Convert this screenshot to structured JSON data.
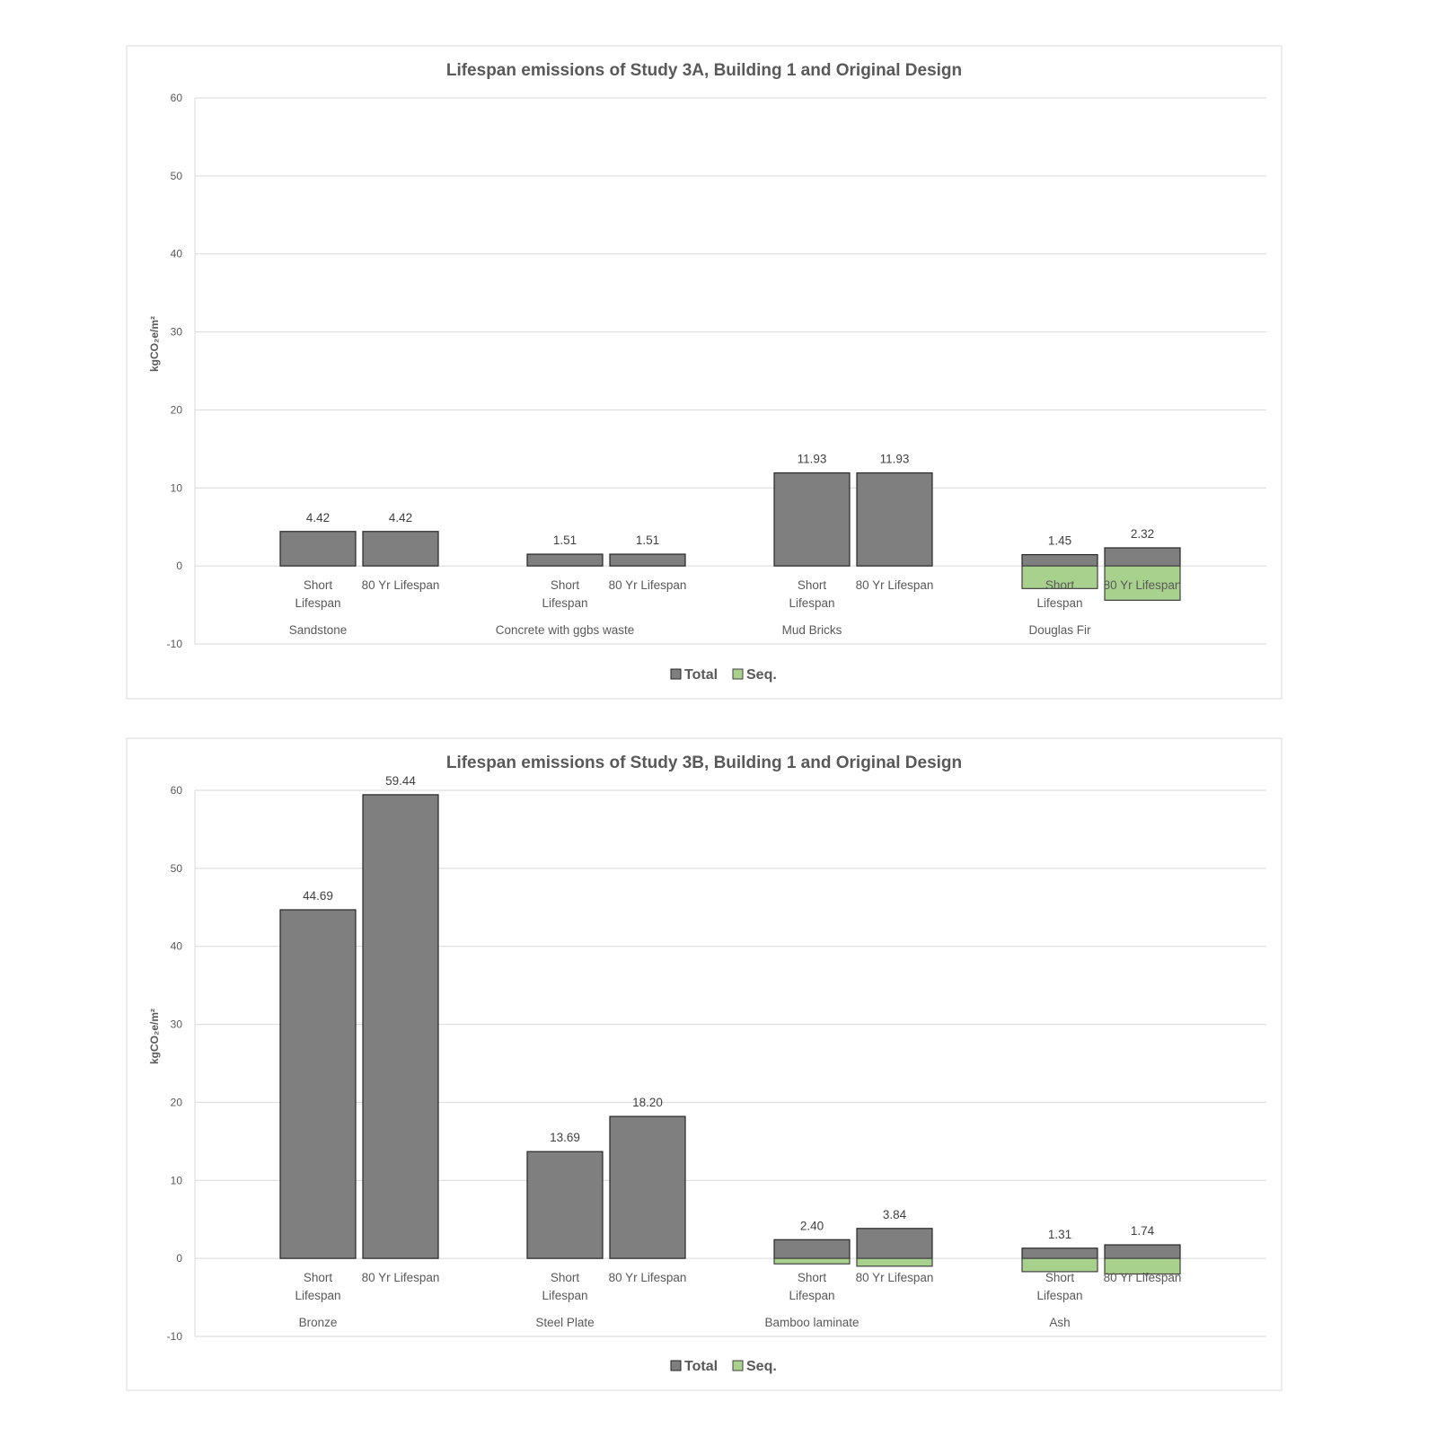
{
  "colors": {
    "total": "#7f7f7f",
    "seq": "#a9d18e",
    "grid": "#d9d9d9"
  },
  "chart_data": [
    {
      "type": "bar",
      "title": "Lifespan emissions of Study 3A, Building 1 and Original Design",
      "ylabel": "kgCO₂e/m²",
      "ylim": [
        -10,
        60
      ],
      "yticks": [
        -10,
        0,
        10,
        20,
        30,
        40,
        50,
        60
      ],
      "grid": true,
      "legend_position": "bottom",
      "groups": [
        "Sandstone",
        "Concrete with ggbs waste",
        "Mud Bricks",
        "Douglas Fir"
      ],
      "subcategories": [
        "Short Lifespan",
        "80 Yr Lifespan"
      ],
      "series": [
        {
          "name": "Total",
          "values": [
            [
              4.42,
              4.42
            ],
            [
              1.51,
              1.51
            ],
            [
              11.93,
              11.93
            ],
            [
              1.45,
              2.32
            ]
          ],
          "labels": [
            [
              "4.42",
              "4.42"
            ],
            [
              "1.51",
              "1.51"
            ],
            [
              "11.93",
              "11.93"
            ],
            [
              "1.45",
              "2.32"
            ]
          ]
        },
        {
          "name": "Seq.",
          "values": [
            [
              0,
              0
            ],
            [
              0,
              0
            ],
            [
              0,
              0
            ],
            [
              -2.9,
              -4.4
            ]
          ]
        }
      ]
    },
    {
      "type": "bar",
      "title": "Lifespan emissions of Study 3B, Building 1 and Original Design",
      "ylabel": "kgCO₂e/m²",
      "ylim": [
        -10,
        60
      ],
      "yticks": [
        -10,
        0,
        10,
        20,
        30,
        40,
        50,
        60
      ],
      "grid": true,
      "legend_position": "bottom",
      "groups": [
        "Bronze",
        "Steel Plate",
        "Bamboo laminate",
        "Ash"
      ],
      "subcategories": [
        "Short Lifespan",
        "80 Yr Lifespan"
      ],
      "series": [
        {
          "name": "Total",
          "values": [
            [
              44.69,
              59.44
            ],
            [
              13.69,
              18.2
            ],
            [
              2.4,
              3.84
            ],
            [
              1.31,
              1.74
            ]
          ],
          "labels": [
            [
              "44.69",
              "59.44"
            ],
            [
              "13.69",
              "18.20"
            ],
            [
              "2.40",
              "3.84"
            ],
            [
              "1.31",
              "1.74"
            ]
          ]
        },
        {
          "name": "Seq.",
          "values": [
            [
              0,
              0
            ],
            [
              0,
              0
            ],
            [
              -0.7,
              -1.0
            ],
            [
              -1.7,
              -2.0
            ]
          ]
        }
      ]
    }
  ]
}
